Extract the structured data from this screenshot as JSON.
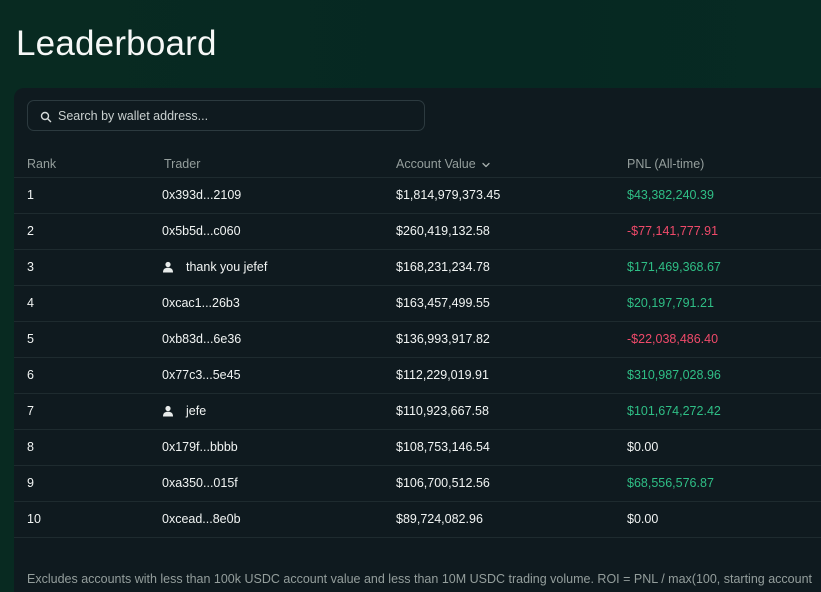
{
  "page": {
    "title": "Leaderboard"
  },
  "search": {
    "placeholder": "Search by wallet address..."
  },
  "table": {
    "headers": {
      "rank": "Rank",
      "trader": "Trader",
      "account_value": "Account Value",
      "pnl": "PNL (All-time)"
    },
    "sort": {
      "column": "account_value",
      "direction": "descending"
    },
    "rows": [
      {
        "rank": "1",
        "trader": "0x393d...2109",
        "has_user_icon": false,
        "account_value": "$1,814,979,373.45",
        "pnl": "$43,382,240.39",
        "pnl_sign": "positive"
      },
      {
        "rank": "2",
        "trader": "0x5b5d...c060",
        "has_user_icon": false,
        "account_value": "$260,419,132.58",
        "pnl": "-$77,141,777.91",
        "pnl_sign": "negative"
      },
      {
        "rank": "3",
        "trader": "thank you jefef",
        "has_user_icon": true,
        "account_value": "$168,231,234.78",
        "pnl": "$171,469,368.67",
        "pnl_sign": "positive"
      },
      {
        "rank": "4",
        "trader": "0xcac1...26b3",
        "has_user_icon": false,
        "account_value": "$163,457,499.55",
        "pnl": "$20,197,791.21",
        "pnl_sign": "positive"
      },
      {
        "rank": "5",
        "trader": "0xb83d...6e36",
        "has_user_icon": false,
        "account_value": "$136,993,917.82",
        "pnl": "-$22,038,486.40",
        "pnl_sign": "negative"
      },
      {
        "rank": "6",
        "trader": "0x77c3...5e45",
        "has_user_icon": false,
        "account_value": "$112,229,019.91",
        "pnl": "$310,987,028.96",
        "pnl_sign": "positive"
      },
      {
        "rank": "7",
        "trader": "jefe",
        "has_user_icon": true,
        "account_value": "$110,923,667.58",
        "pnl": "$101,674,272.42",
        "pnl_sign": "positive"
      },
      {
        "rank": "8",
        "trader": "0x179f...bbbb",
        "has_user_icon": false,
        "account_value": "$108,753,146.54",
        "pnl": "$0.00",
        "pnl_sign": "zero"
      },
      {
        "rank": "9",
        "trader": "0xa350...015f",
        "has_user_icon": false,
        "account_value": "$106,700,512.56",
        "pnl": "$68,556,576.87",
        "pnl_sign": "positive"
      },
      {
        "rank": "10",
        "trader": "0xcead...8e0b",
        "has_user_icon": false,
        "account_value": "$89,724,082.96",
        "pnl": "$0.00",
        "pnl_sign": "zero"
      }
    ]
  },
  "footnote": "Excludes accounts with less than 100k USDC account value and less than 10M USDC trading volume. ROI = PNL / max(100, starting account",
  "colors": {
    "background": "#062822",
    "panel": "#0f1a1f",
    "positive": "#2fbf86",
    "negative": "#ef4a6a",
    "muted": "#949e9c"
  },
  "icons": {
    "search": "search-icon",
    "sort": "chevron-down-icon",
    "user": "user-icon"
  }
}
